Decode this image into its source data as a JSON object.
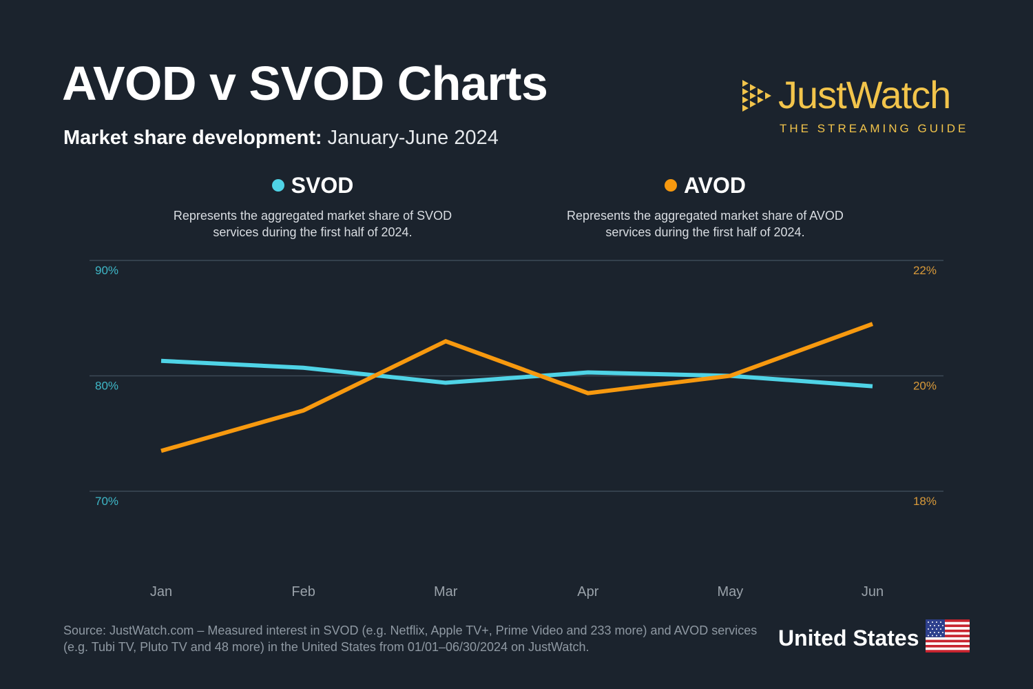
{
  "header": {
    "title": "AVOD v SVOD Charts",
    "subtitle_bold": "Market share development:",
    "subtitle_light": "January-June 2024"
  },
  "logo": {
    "word": "JustWatch",
    "tagline": "THE STREAMING GUIDE",
    "color": "#f2c44b"
  },
  "legend": [
    {
      "name": "SVOD",
      "color": "#4fd3e6",
      "description": "Represents the aggregated market share of SVOD services during the first half of 2024."
    },
    {
      "name": "AVOD",
      "color": "#f7990f",
      "description": "Represents the aggregated market share of AVOD services during the first half of 2024."
    }
  ],
  "chart_data": {
    "type": "line",
    "categories": [
      "Jan",
      "Feb",
      "Mar",
      "Apr",
      "May",
      "Jun"
    ],
    "series": [
      {
        "name": "SVOD",
        "axis": "left",
        "color": "#4fd3e6",
        "values": [
          81.3,
          80.7,
          79.4,
          80.3,
          80.0,
          79.1
        ]
      },
      {
        "name": "AVOD",
        "axis": "right",
        "color": "#f7990f",
        "values": [
          18.7,
          19.4,
          20.6,
          19.7,
          20.0,
          20.9
        ]
      }
    ],
    "y_left": {
      "range": [
        70,
        90
      ],
      "ticks": [
        "90%",
        "80%",
        "70%"
      ],
      "tick_values": [
        90,
        80,
        70
      ],
      "color": "#3fb8c8"
    },
    "y_right": {
      "range": [
        18,
        22
      ],
      "ticks": [
        "22%",
        "20%",
        "18%"
      ],
      "tick_values": [
        22,
        20,
        18
      ],
      "color": "#d99a3a"
    },
    "grid": true
  },
  "footer": {
    "source": "Source: JustWatch.com – Measured interest in SVOD (e.g. Netflix, Apple TV+, Prime Video and 233 more) and AVOD services (e.g. Tubi TV, Pluto TV and 48 more) in the United States from 01/01–06/30/2024 on JustWatch.",
    "country": "United States"
  }
}
